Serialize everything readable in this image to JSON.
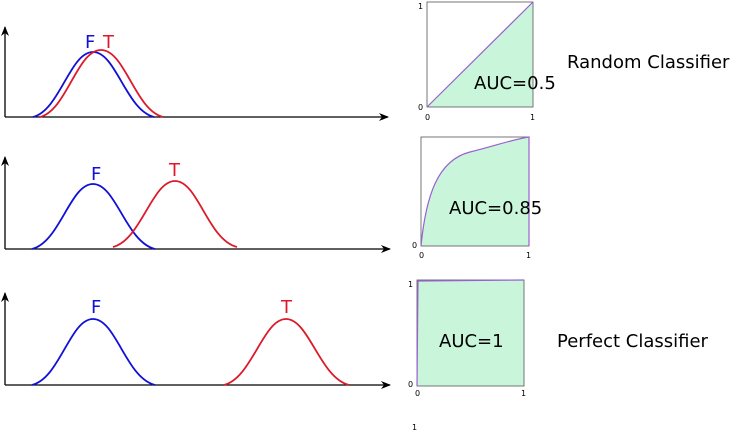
{
  "colors": {
    "negative": "#1010d6",
    "positive": "#dc1a2a",
    "auc_fill": "#c9f6da",
    "roc_curve": "#9a5fd2"
  },
  "rows": [
    {
      "label_negative": "F",
      "label_positive": "T",
      "auc_label": "AUC=0.5",
      "classifier_name": "Random Classifier",
      "roc_ticks": {
        "x_start": "0",
        "x_end": "1",
        "y_start": "0",
        "y_end": "1"
      }
    },
    {
      "label_negative": "F",
      "label_positive": "T",
      "auc_label": "AUC=0.85",
      "classifier_name": "",
      "roc_ticks": {
        "x_start": "0",
        "x_end": "1",
        "y_start": "0",
        "y_end": ""
      }
    },
    {
      "label_negative": "F",
      "label_positive": "T",
      "auc_label": "AUC=1",
      "classifier_name": "Perfect Classifier",
      "roc_ticks": {
        "x_start": "0",
        "x_end": "1",
        "y_start": "0",
        "y_end": "1"
      }
    }
  ],
  "stray_tick": "1"
}
